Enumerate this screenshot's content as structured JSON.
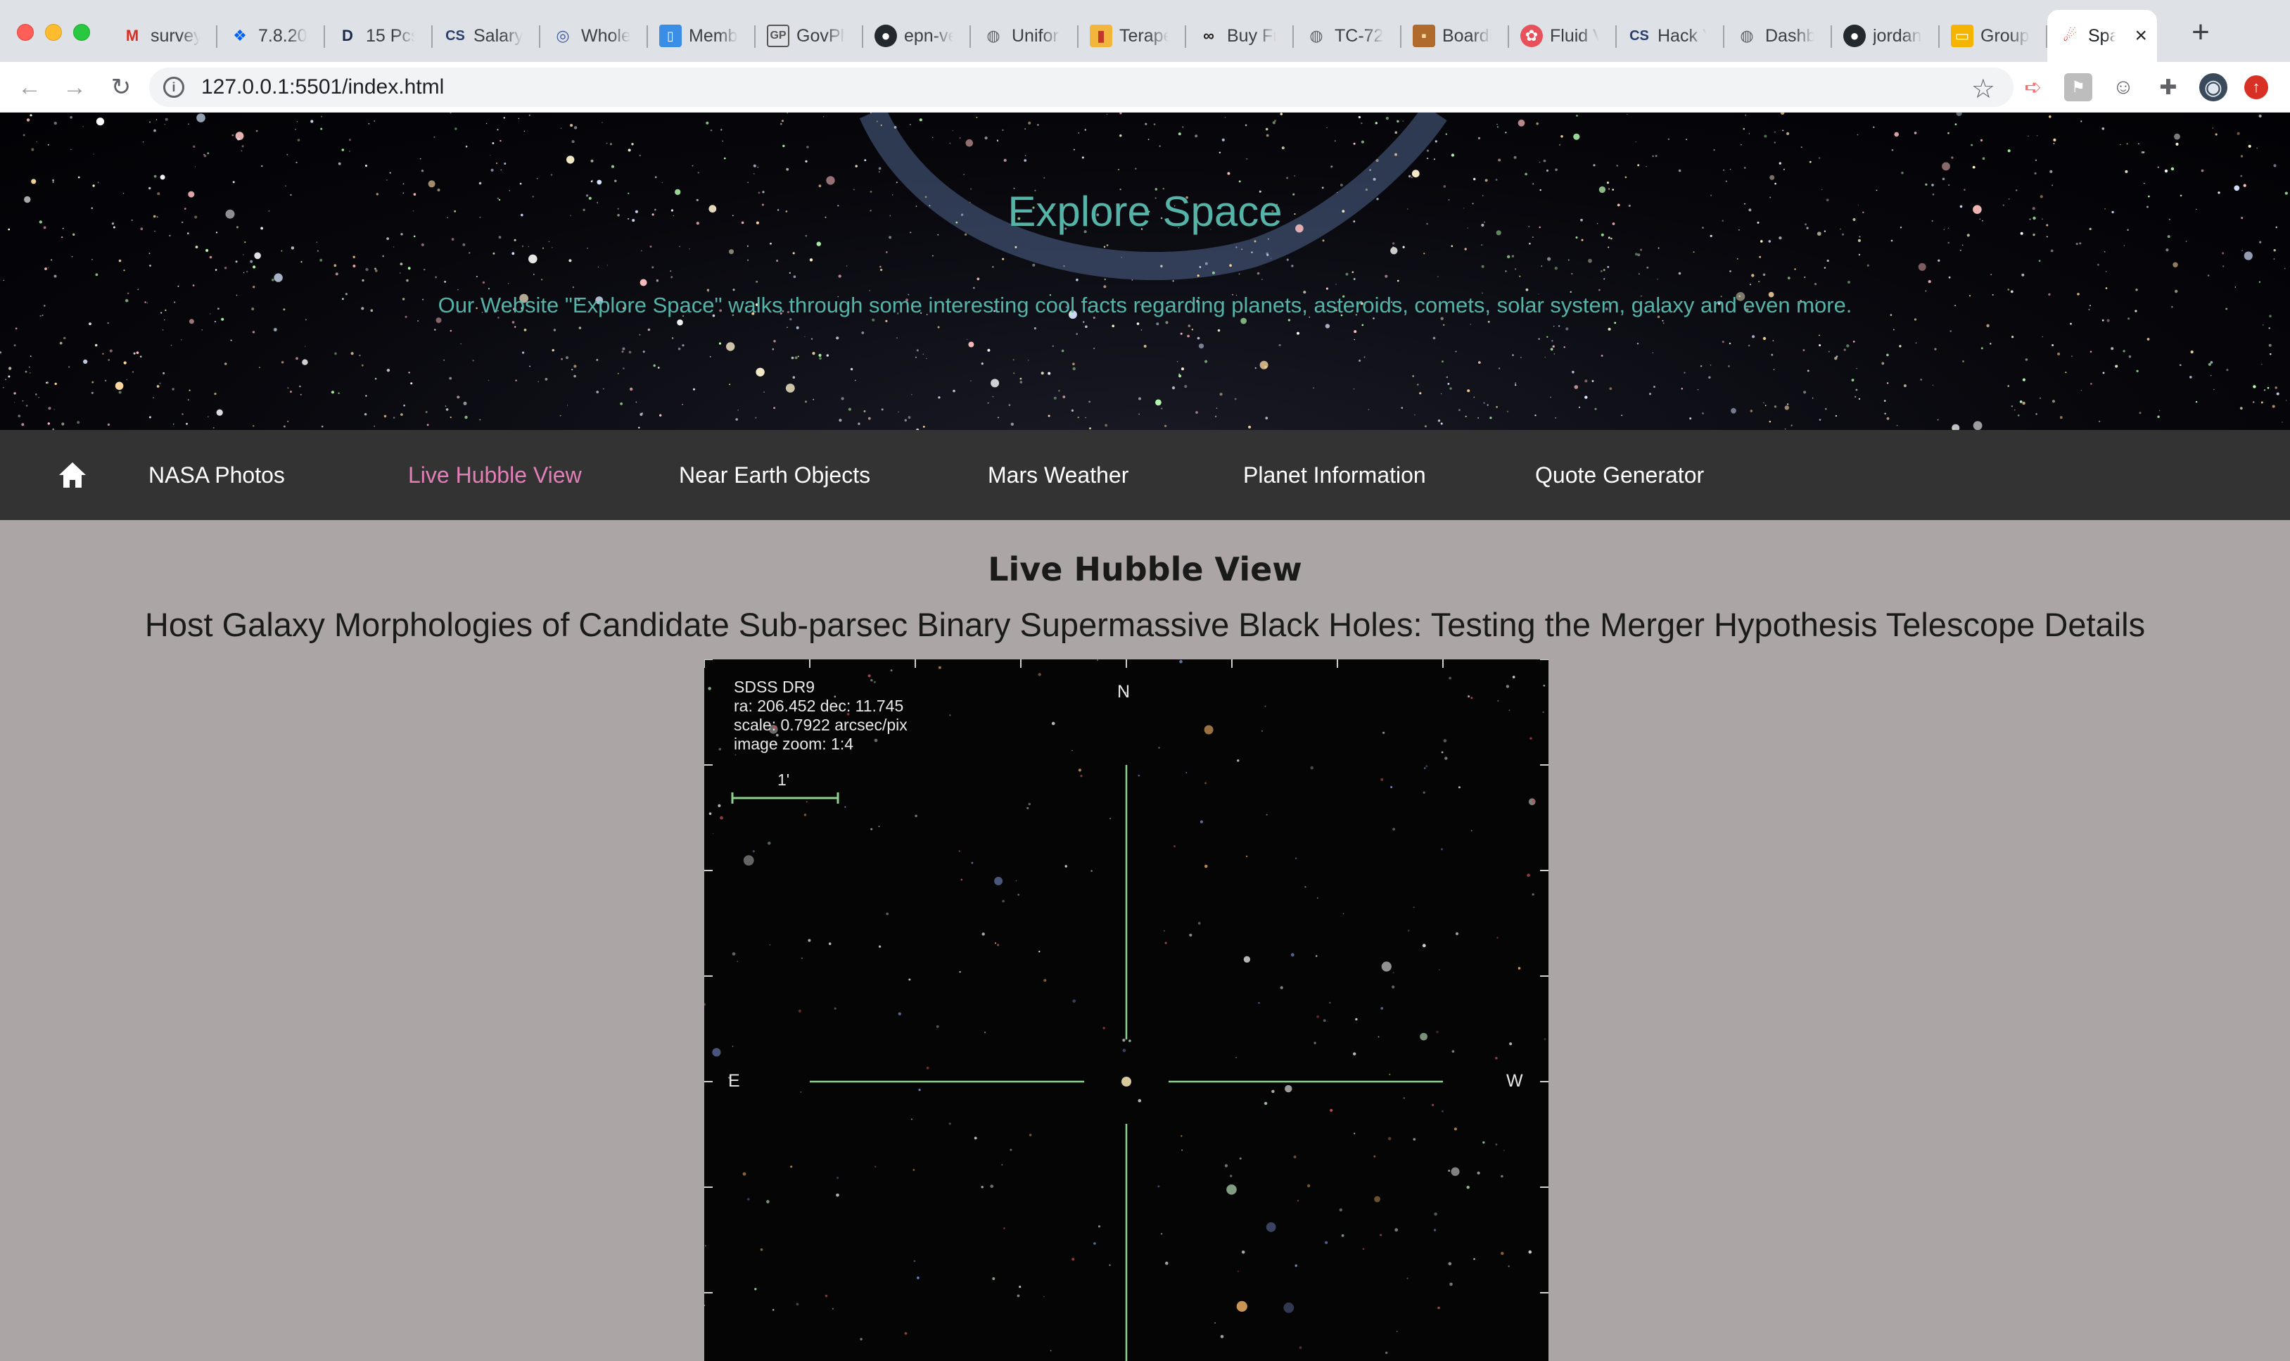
{
  "browser": {
    "tabs": [
      {
        "title": "survey",
        "icon": "gmail-icon"
      },
      {
        "title": "7.8.20",
        "icon": "dropbox-icon"
      },
      {
        "title": "15 Pcs",
        "icon": "d-icon"
      },
      {
        "title": "Salary",
        "icon": "cs-icon"
      },
      {
        "title": "Whole",
        "icon": "target-icon"
      },
      {
        "title": "Memb",
        "icon": "phone-icon"
      },
      {
        "title": "GovPla",
        "icon": "gp-icon"
      },
      {
        "title": "epn-ve",
        "icon": "github-icon"
      },
      {
        "title": "Unifor",
        "icon": "globe-icon"
      },
      {
        "title": "Terape",
        "icon": "bag-icon"
      },
      {
        "title": "Buy Fr",
        "icon": "binoculars-icon"
      },
      {
        "title": "TC-72",
        "icon": "globe-icon"
      },
      {
        "title": "Boardi",
        "icon": "photo-icon"
      },
      {
        "title": "Fluid V",
        "icon": "flower-icon"
      },
      {
        "title": "Hack Y",
        "icon": "cs-icon"
      },
      {
        "title": "Dashb",
        "icon": "globe-icon"
      },
      {
        "title": "jordan",
        "icon": "github-icon"
      },
      {
        "title": "Group",
        "icon": "slides-icon"
      },
      {
        "title": "Spa",
        "icon": "rocket-icon",
        "active": true
      }
    ],
    "url": "127.0.0.1:5501/index.html"
  },
  "site": {
    "title": "Explore Space",
    "subtitle": "Our Website \"Explore Space\" walks through some interesting cool facts regarding planets, asteroids, comets, solar system, galaxy and even more."
  },
  "nav": {
    "home_icon": "home-icon",
    "items": [
      {
        "label": "NASA Photos",
        "active": false
      },
      {
        "label": "Live Hubble View",
        "active": true
      },
      {
        "label": "Near Earth Objects",
        "active": false
      },
      {
        "label": "Mars Weather",
        "active": false
      },
      {
        "label": "Planet Information",
        "active": false
      },
      {
        "label": "Quote Generator",
        "active": false
      }
    ]
  },
  "main": {
    "heading": "Live Hubble View",
    "image_title": "Host Galaxy Morphologies of Candidate Sub-parsec Binary Supermassive Black Holes: Testing the Merger Hypothesis Telescope Details",
    "image": {
      "survey": "SDSS DR9",
      "coords": "ra: 206.452 dec: 11.745",
      "scale": "scale: 0.7922 arcsec/pix",
      "zoom": "image zoom: 1:4",
      "scale_bar": "1'",
      "north": "N",
      "east": "E",
      "west": "W"
    }
  },
  "colors": {
    "accent_teal": "#55b3a8",
    "nav_active": "#e37fb8",
    "nav_bg": "#333333",
    "page_bg": "#aba6a5",
    "crosshair": "#8fd18f"
  }
}
